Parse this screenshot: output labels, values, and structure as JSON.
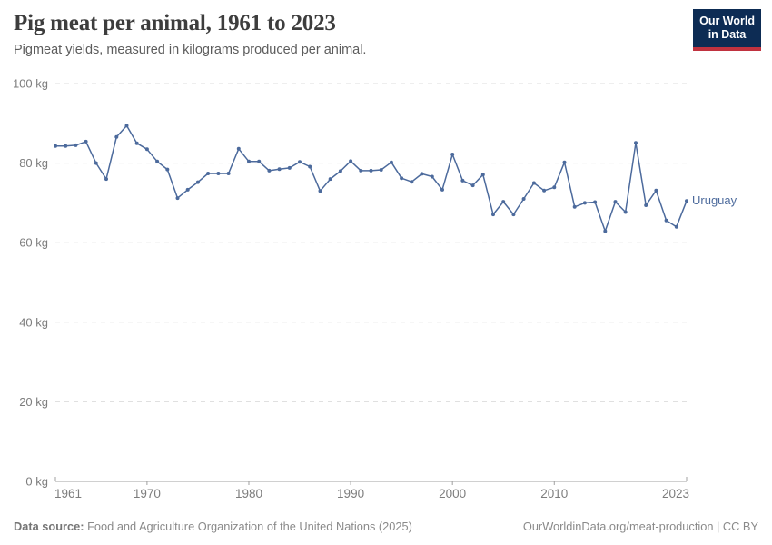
{
  "header": {
    "title": "Pig meat per animal, 1961 to 2023",
    "subtitle": "Pigmeat yields, measured in kilograms produced per animal."
  },
  "logo": {
    "line1": "Our World",
    "line2": "in Data",
    "bg_color": "#0d2c54",
    "accent_color": "#c0323f"
  },
  "chart_data": {
    "type": "line",
    "title": "Pig meat per animal, 1961 to 2023",
    "xlabel": "",
    "ylabel": "",
    "ylim": [
      0,
      100
    ],
    "yticks": [
      0,
      20,
      40,
      60,
      80,
      100
    ],
    "ytick_suffix": " kg",
    "xticks": [
      1961,
      1970,
      1980,
      1990,
      2000,
      2010,
      2023
    ],
    "grid": "horizontal-dashed",
    "legend": "end-of-line-label",
    "x": [
      1961,
      1962,
      1963,
      1964,
      1965,
      1966,
      1967,
      1968,
      1969,
      1970,
      1971,
      1972,
      1973,
      1974,
      1975,
      1976,
      1977,
      1978,
      1979,
      1980,
      1981,
      1982,
      1983,
      1984,
      1985,
      1986,
      1987,
      1988,
      1989,
      1990,
      1991,
      1992,
      1993,
      1994,
      1995,
      1996,
      1997,
      1998,
      1999,
      2000,
      2001,
      2002,
      2003,
      2004,
      2005,
      2006,
      2007,
      2008,
      2009,
      2010,
      2011,
      2012,
      2013,
      2014,
      2015,
      2016,
      2017,
      2018,
      2019,
      2020,
      2021,
      2022,
      2023
    ],
    "series": [
      {
        "name": "Uruguay",
        "color": "#4c6a9c",
        "values": [
          84.3,
          84.3,
          84.5,
          85.4,
          80.0,
          76.0,
          86.6,
          89.4,
          85.0,
          83.5,
          80.4,
          78.4,
          71.2,
          73.3,
          75.2,
          77.4,
          77.4,
          77.4,
          83.6,
          80.4,
          80.4,
          78.1,
          78.5,
          78.8,
          80.3,
          79.1,
          73.0,
          76.0,
          78.0,
          80.5,
          78.1,
          78.1,
          78.3,
          80.2,
          76.2,
          75.3,
          77.3,
          76.6,
          73.3,
          82.2,
          75.6,
          74.4,
          77.1,
          67.1,
          70.3,
          67.1,
          71.0,
          75.0,
          73.1,
          73.9,
          80.2,
          69.0,
          70.0,
          70.2,
          62.9,
          70.3,
          67.7,
          85.1,
          69.4,
          73.1,
          65.6,
          64.0,
          70.5
        ]
      }
    ]
  },
  "footer": {
    "source_label": "Data source:",
    "source_text": "Food and Agriculture Organization of the United Nations (2025)",
    "link_text": "OurWorldinData.org/meat-production | CC BY"
  }
}
